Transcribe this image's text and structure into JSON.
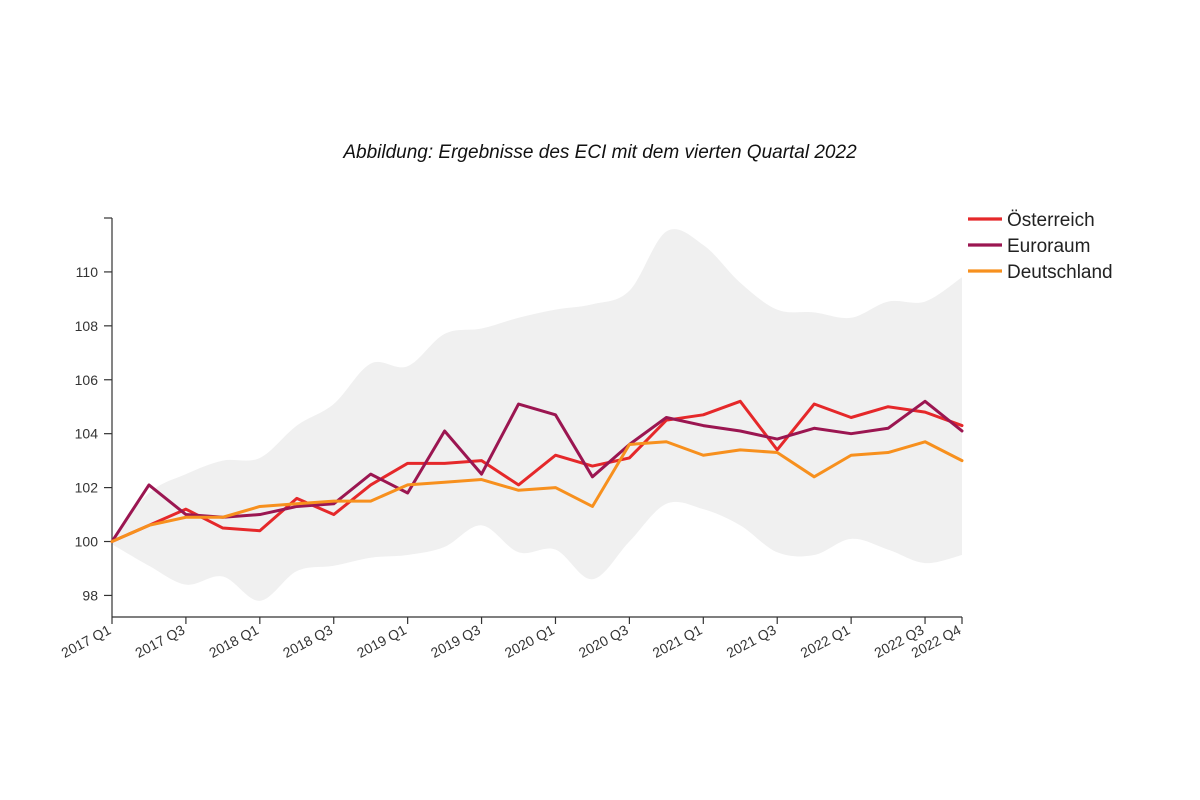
{
  "chart_data": {
    "type": "line",
    "title": "Abbildung: Ergebnisse des ECI mit dem vierten Quartal 2022",
    "xlabel": "",
    "ylabel": "",
    "ylim": [
      97.2,
      112
    ],
    "yticks": [
      98,
      100,
      102,
      104,
      106,
      108,
      110
    ],
    "categories": [
      "2017 Q1",
      "2017 Q2",
      "2017 Q3",
      "2017 Q4",
      "2018 Q1",
      "2018 Q2",
      "2018 Q3",
      "2018 Q4",
      "2019 Q1",
      "2019 Q2",
      "2019 Q3",
      "2019 Q4",
      "2020 Q1",
      "2020 Q2",
      "2020 Q3",
      "2020 Q4",
      "2021 Q1",
      "2021 Q2",
      "2021 Q3",
      "2021 Q4",
      "2022 Q1",
      "2022 Q2",
      "2022 Q3",
      "2022 Q4"
    ],
    "x_tick_labels": [
      "2017 Q1",
      "2017 Q3",
      "2018 Q1",
      "2018 Q3",
      "2019 Q1",
      "2019 Q3",
      "2020 Q1",
      "2020 Q3",
      "2021 Q1",
      "2021 Q3",
      "2022 Q1",
      "2022 Q3",
      "2022 Q4"
    ],
    "legend_position": "top-right",
    "grid": false,
    "series": [
      {
        "name": "Österreich",
        "color": "#e5282a",
        "values": [
          100.0,
          100.6,
          101.2,
          100.5,
          100.4,
          101.6,
          101.0,
          102.1,
          102.9,
          102.9,
          103.0,
          102.1,
          103.2,
          102.8,
          103.1,
          104.5,
          104.7,
          105.2,
          103.4,
          105.1,
          104.6,
          105.0,
          104.8,
          104.3
        ]
      },
      {
        "name": "Euroraum",
        "color": "#9b1651",
        "values": [
          100.0,
          102.1,
          101.0,
          100.9,
          101.0,
          101.3,
          101.4,
          102.5,
          101.8,
          104.1,
          102.5,
          105.1,
          104.7,
          102.4,
          103.6,
          104.6,
          104.3,
          104.1,
          103.8,
          104.2,
          104.0,
          104.2,
          105.2,
          104.1
        ]
      },
      {
        "name": "Deutschland",
        "color": "#f7901e",
        "values": [
          100.0,
          100.6,
          100.9,
          100.9,
          101.3,
          101.4,
          101.5,
          101.5,
          102.1,
          102.2,
          102.3,
          101.9,
          102.0,
          101.3,
          103.6,
          103.7,
          103.2,
          103.4,
          103.3,
          102.4,
          103.2,
          103.3,
          103.7,
          103.0
        ]
      }
    ],
    "band": {
      "color": "#f0f0f0",
      "upper": [
        100.1,
        101.8,
        102.5,
        103.0,
        103.1,
        104.3,
        105.1,
        106.6,
        106.5,
        107.7,
        107.9,
        108.3,
        108.6,
        108.8,
        109.3,
        111.5,
        111.0,
        109.6,
        108.6,
        108.5,
        108.3,
        108.9,
        108.9,
        109.8
      ],
      "lower": [
        99.9,
        99.1,
        98.4,
        98.7,
        97.8,
        98.9,
        99.1,
        99.4,
        99.5,
        99.8,
        100.6,
        99.6,
        99.7,
        98.6,
        100.0,
        101.4,
        101.2,
        100.6,
        99.6,
        99.5,
        100.1,
        99.7,
        99.2,
        99.5
      ]
    }
  }
}
